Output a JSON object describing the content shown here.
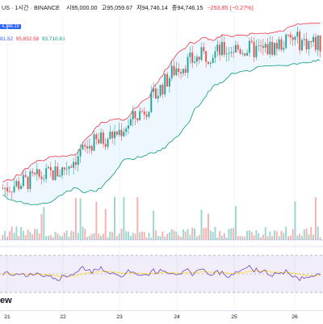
{
  "header": {
    "symbol": "US · 1시간 · BINANCE",
    "open_label": "시",
    "open_value": "95,000.00",
    "high_label": "고",
    "high_value": "95,059.67",
    "low_label": "저",
    "low_value": "94,746.14",
    "close_label": "종",
    "close_value": "94,746.15",
    "change": "−253.85 (−0.27%)"
  },
  "price_tag": "4,746.15",
  "bb_values": {
    "basis": "81.62",
    "upper": "95,652.58",
    "lower": "93,710.65"
  },
  "x_axis": {
    "labels": [
      "21",
      "22",
      "23",
      "24",
      "25",
      "26"
    ]
  },
  "branding": {
    "text": "ew"
  },
  "colors": {
    "up": "#26a69a",
    "down": "#ef5350",
    "bb_upper": "#f23645",
    "bb_lower": "#089981",
    "bb_fill": "#2196f3",
    "rsi_line": "#7e57c2",
    "rsi_bg": "#7e57c2",
    "rsi_ma": "#fdd835"
  },
  "chart_data": {
    "type": "candlestick",
    "price_trend": [
      88.0,
      88.4,
      88.8,
      90.0,
      90.6,
      91.8,
      93.6,
      94.2,
      94.5,
      94.4,
      94.9,
      94.7
    ],
    "volume_level": "mixed",
    "rsi_range": [
      30,
      70
    ]
  }
}
